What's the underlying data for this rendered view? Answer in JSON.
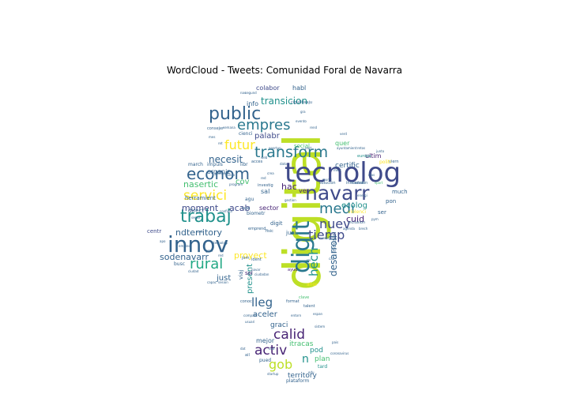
{
  "title": "WordCloud - Tweets: Comunidad Foral de Navarra",
  "palette": {
    "dark_purple": "#482475",
    "indigo": "#3f4a8a",
    "blue": "#33638d",
    "teal_blue": "#2a788e",
    "teal": "#21918c",
    "green_teal": "#22a884",
    "green": "#44bf70",
    "lime": "#7ad151",
    "yellow_green": "#bddf26",
    "yellow": "#fde725"
  },
  "words": [
    {
      "text": "digital",
      "c": "yellow_green"
    },
    {
      "text": "tecnolog",
      "c": "indigo"
    },
    {
      "text": "innov",
      "c": "blue"
    },
    {
      "text": "digit",
      "c": "teal_blue"
    },
    {
      "text": "navarr",
      "c": "indigo"
    },
    {
      "text": "public",
      "c": "blue"
    },
    {
      "text": "trabaj",
      "c": "teal"
    },
    {
      "text": "econom",
      "c": "blue"
    },
    {
      "text": "empres",
      "c": "teal_blue"
    },
    {
      "text": "transform",
      "c": "teal_blue"
    },
    {
      "text": "medi",
      "c": "teal_blue"
    },
    {
      "text": "rural",
      "c": "green_teal"
    },
    {
      "text": "servici",
      "c": "yellow"
    },
    {
      "text": "nuev",
      "c": "indigo"
    },
    {
      "text": "tiemp",
      "c": "indigo"
    },
    {
      "text": "futur",
      "c": "yellow"
    },
    {
      "text": "hech",
      "c": "teal"
    },
    {
      "text": "calid",
      "c": "dark_purple"
    },
    {
      "text": "activ",
      "c": "dark_purple"
    },
    {
      "text": "gob",
      "c": "yellow_green"
    },
    {
      "text": "lleg",
      "c": "blue"
    },
    {
      "text": "n",
      "c": "teal"
    },
    {
      "text": "desarroll",
      "c": "blue"
    },
    {
      "text": "transicion",
      "c": "teal"
    },
    {
      "text": "necesit",
      "c": "blue"
    },
    {
      "text": "nasertic",
      "c": "green"
    },
    {
      "text": "moment",
      "c": "indigo"
    },
    {
      "text": "acab",
      "c": "indigo"
    },
    {
      "text": "ndterritory",
      "c": "blue"
    },
    {
      "text": "sodenavarr",
      "c": "blue"
    },
    {
      "text": "hac",
      "c": "dark_purple"
    },
    {
      "text": "cuid",
      "c": "dark_purple"
    },
    {
      "text": "ecolog",
      "c": "teal"
    },
    {
      "text": "palabr",
      "c": "indigo"
    },
    {
      "text": "proyect",
      "c": "yellow"
    },
    {
      "text": "present",
      "c": "teal"
    },
    {
      "text": "just",
      "c": "blue"
    },
    {
      "text": "aceler",
      "c": "blue"
    },
    {
      "text": "cov",
      "c": "green"
    },
    {
      "text": "certific",
      "c": "blue"
    },
    {
      "text": "territory",
      "c": "blue"
    },
    {
      "text": "plan",
      "c": "green"
    },
    {
      "text": "pod",
      "c": "teal"
    },
    {
      "text": "mejor",
      "c": "blue"
    },
    {
      "text": "graci",
      "c": "blue"
    },
    {
      "text": "itracas",
      "c": "green"
    },
    {
      "text": "colabor",
      "c": "indigo"
    },
    {
      "text": "habl",
      "c": "blue"
    },
    {
      "text": "info",
      "c": "blue"
    },
    {
      "text": "organiz",
      "c": "blue"
    },
    {
      "text": "quer",
      "c": "green"
    },
    {
      "text": "ultim",
      "c": "dark_purple"
    },
    {
      "text": "sector",
      "c": "dark_purple"
    },
    {
      "text": "sal",
      "c": "blue"
    },
    {
      "text": "ver",
      "c": "dark_purple"
    },
    {
      "text": "herramient",
      "c": "blue"
    },
    {
      "text": "direct",
      "c": "blue"
    },
    {
      "text": "centr",
      "c": "indigo"
    },
    {
      "text": "social",
      "c": "green"
    },
    {
      "text": "viaj",
      "c": "blue"
    },
    {
      "text": "industri",
      "c": "blue"
    },
    {
      "text": "digit",
      "c": "blue"
    },
    {
      "text": "juni",
      "c": "blue"
    },
    {
      "text": "much",
      "c": "blue"
    },
    {
      "text": "pon",
      "c": "blue"
    },
    {
      "text": "ser",
      "c": "blue"
    },
    {
      "text": "sol",
      "c": "dark_purple"
    },
    {
      "text": "busc",
      "c": "blue"
    },
    {
      "text": "pued",
      "c": "blue"
    },
    {
      "text": "tard",
      "c": "teal"
    },
    {
      "text": "plataform",
      "c": "blue"
    },
    {
      "text": "impuls",
      "c": "blue"
    },
    {
      "text": "march",
      "c": "blue"
    },
    {
      "text": "libr",
      "c": "blue"
    },
    {
      "text": "acces",
      "c": "blue"
    },
    {
      "text": "investig",
      "c": "blue"
    },
    {
      "text": "biometr",
      "c": "blue"
    },
    {
      "text": "emprend",
      "c": "blue"
    },
    {
      "text": "fisic",
      "c": "blue"
    },
    {
      "text": "solucion",
      "c": "blue"
    },
    {
      "text": "mañan",
      "c": "blue"
    },
    {
      "text": "innovación",
      "c": "blue"
    },
    {
      "text": "violenci",
      "c": "yellow"
    },
    {
      "text": "inclusion",
      "c": "blue"
    },
    {
      "text": "viern",
      "c": "blue"
    },
    {
      "text": "politi",
      "c": "yellow"
    },
    {
      "text": "europa",
      "c": "teal"
    },
    {
      "text": "consejer",
      "c": "blue"
    },
    {
      "text": "cienci",
      "c": "blue"
    },
    {
      "text": "segund",
      "c": "blue"
    },
    {
      "text": "cigu0bsaju",
      "c": "blue"
    },
    {
      "text": "ident",
      "c": "blue"
    },
    {
      "text": "jorn",
      "c": "blue"
    },
    {
      "text": "agu",
      "c": "blue"
    },
    {
      "text": "suai",
      "c": "blue"
    },
    {
      "text": "configur",
      "c": "blue"
    },
    {
      "text": "conoc",
      "c": "blue"
    },
    {
      "text": "clave",
      "c": "green"
    },
    {
      "text": "format",
      "c": "blue"
    },
    {
      "text": "ahor",
      "c": "yellow"
    },
    {
      "text": "ayud",
      "c": "dark_purple"
    },
    {
      "text": "talent",
      "c": "blue"
    },
    {
      "text": "rol",
      "c": "blue"
    },
    {
      "text": "cab",
      "c": "blue"
    },
    {
      "text": "apo",
      "c": "blue"
    },
    {
      "text": "ciudad",
      "c": "blue"
    },
    {
      "text": "startup",
      "c": "blue"
    },
    {
      "text": "ail",
      "c": "blue"
    },
    {
      "text": "cod",
      "c": "blue"
    },
    {
      "text": "crea",
      "c": "blue"
    },
    {
      "text": "part",
      "c": "blue"
    },
    {
      "text": "sport",
      "c": "green"
    },
    {
      "text": "web",
      "c": "blue"
    },
    {
      "text": "dato",
      "c": "blue"
    },
    {
      "text": "nas",
      "c": "blue"
    },
    {
      "text": "gra",
      "c": "blue"
    },
    {
      "text": "mes",
      "c": "blue"
    },
    {
      "text": "rend",
      "c": "blue"
    },
    {
      "text": "ret",
      "c": "blue"
    },
    {
      "text": "campañ",
      "c": "blue"
    },
    {
      "text": "tecnologi",
      "c": "blue"
    },
    {
      "text": "energi",
      "c": "blue"
    },
    {
      "text": "agenda",
      "c": "blue"
    },
    {
      "text": "red",
      "c": "blue"
    },
    {
      "text": "sesion",
      "c": "blue"
    },
    {
      "text": "ciudadan",
      "c": "blue"
    },
    {
      "text": "program",
      "c": "blue"
    },
    {
      "text": "empleo",
      "c": "blue"
    },
    {
      "text": "gestion",
      "c": "blue"
    },
    {
      "text": "semana",
      "c": "blue"
    },
    {
      "text": "evento",
      "c": "blue"
    },
    {
      "text": "navar",
      "c": "blue"
    },
    {
      "text": "espan",
      "c": "blue"
    },
    {
      "text": "mund",
      "c": "blue"
    },
    {
      "text": "segur",
      "c": "blue"
    },
    {
      "text": "dias",
      "c": "blue"
    },
    {
      "text": "junto",
      "c": "blue"
    },
    {
      "text": "gran",
      "c": "blue"
    },
    {
      "text": "vid",
      "c": "blue"
    },
    {
      "text": "pais",
      "c": "blue"
    },
    {
      "text": "coronavirus",
      "c": "blue"
    },
    {
      "text": "ayuntamient",
      "c": "blue"
    },
    {
      "text": "conect",
      "c": "blue"
    },
    {
      "text": "merc",
      "c": "blue"
    },
    {
      "text": "oportun",
      "c": "blue"
    },
    {
      "text": "fondo",
      "c": "blue"
    },
    {
      "text": "red",
      "c": "blue"
    },
    {
      "text": "nivel",
      "c": "blue"
    },
    {
      "text": "brech",
      "c": "blue"
    },
    {
      "text": "capac",
      "c": "blue"
    },
    {
      "text": "compart",
      "c": "blue"
    },
    {
      "text": "usuari",
      "c": "blue"
    },
    {
      "text": "entorn",
      "c": "blue"
    },
    {
      "text": "sistem",
      "c": "blue"
    },
    {
      "text": "dat",
      "c": "blue"
    },
    {
      "text": "edu",
      "c": "blue"
    },
    {
      "text": "verd",
      "c": "blue"
    },
    {
      "text": "retos",
      "c": "blue"
    },
    {
      "text": "pym",
      "c": "blue"
    }
  ]
}
